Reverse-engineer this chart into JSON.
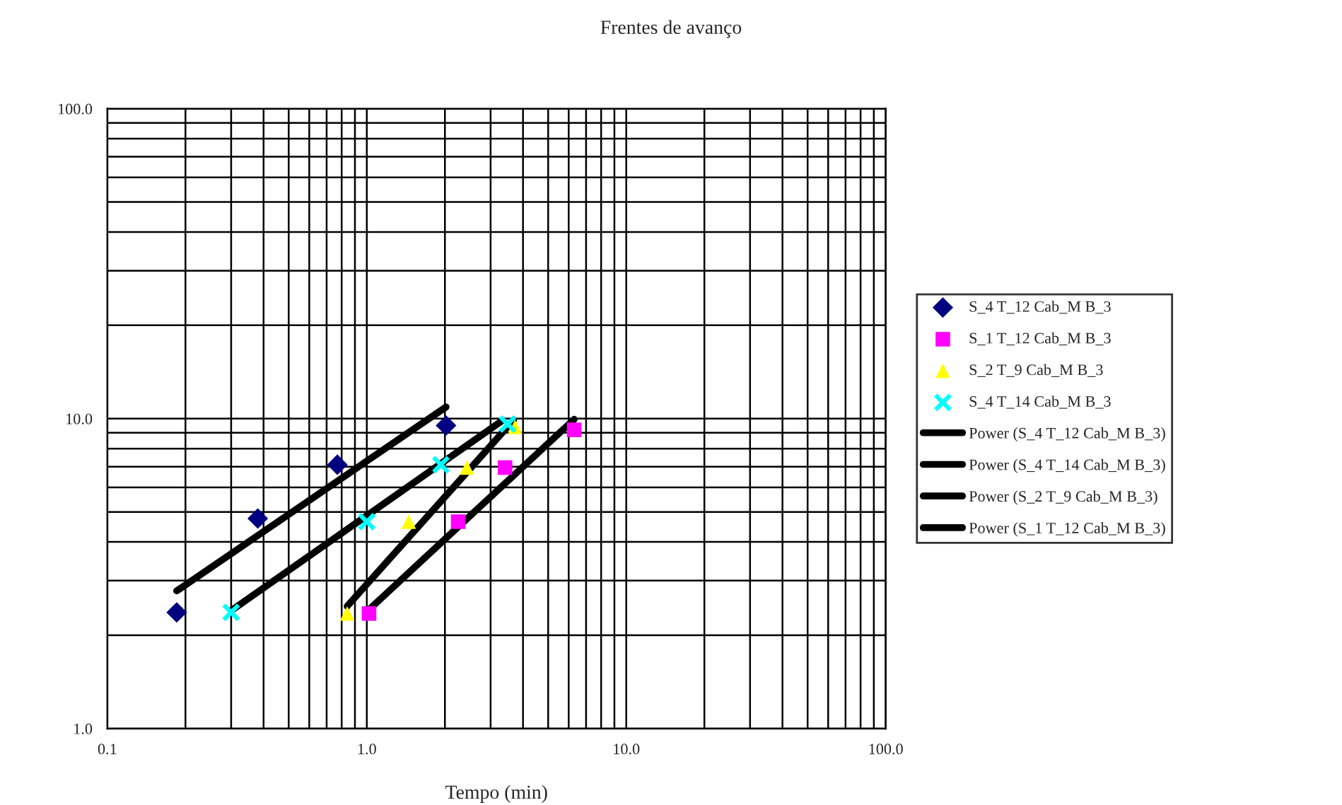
{
  "chart_data": {
    "type": "scatter",
    "title": "Frentes de avanço",
    "xlabel": "Tempo (min)",
    "log": "xy",
    "xlim": [
      0.1,
      100
    ],
    "ylim": [
      1,
      100
    ],
    "xticks": [
      {
        "value": 0.1,
        "label": "0.1"
      },
      {
        "value": 1,
        "label": "1.0"
      },
      {
        "value": 10,
        "label": "10.0"
      },
      {
        "value": 100,
        "label": "100.0"
      }
    ],
    "yticks": [
      {
        "value": 1,
        "label": "1.0"
      },
      {
        "value": 10,
        "label": "10.0"
      },
      {
        "value": 100,
        "label": "100.0"
      }
    ],
    "grid": true,
    "legend": "right",
    "series": [
      {
        "name": "S_4 T_12 Cab_M B_3",
        "marker": "diamond",
        "color": "#000080",
        "x": [
          0.185,
          0.38,
          0.77,
          2.02
        ],
        "values": [
          2.37,
          4.76,
          7.1,
          9.5
        ]
      },
      {
        "name": "S_1 T_12 Cab_M B_3",
        "marker": "square",
        "color": "#ff00ff",
        "x": [
          1.02,
          2.25,
          3.41,
          6.3
        ],
        "values": [
          2.35,
          4.65,
          6.95,
          9.2
        ]
      },
      {
        "name": "S_2 T_9 Cab_M B_3",
        "marker": "triangle",
        "color": "#ffff00",
        "x": [
          0.84,
          1.45,
          2.43,
          3.73
        ],
        "values": [
          2.35,
          4.65,
          6.95,
          9.4
        ]
      },
      {
        "name": "S_4 T_14 Cab_M B_3",
        "marker": "cross",
        "color": "#00ffff",
        "x": [
          0.3,
          1.0,
          1.93,
          3.49
        ],
        "values": [
          2.37,
          4.65,
          7.1,
          9.6
        ]
      },
      {
        "name": "Power (S_4 T_12 Cab_M B_3)",
        "type": "line",
        "line_style": "solid",
        "color": "#000000",
        "x": [
          0.185,
          2.02
        ],
        "values": [
          2.78,
          10.9
        ]
      },
      {
        "name": "Power (S_4 T_14 Cab_M B_3)",
        "type": "line",
        "line_style": "solid",
        "color": "#000000",
        "x": [
          0.3,
          3.3
        ],
        "values": [
          2.4,
          9.8
        ]
      },
      {
        "name": "Power (S_2 T_9 Cab_M B_3)",
        "type": "line",
        "line_style": "solid",
        "color": "#000000",
        "x": [
          0.84,
          3.68
        ],
        "values": [
          2.48,
          9.9
        ]
      },
      {
        "name": "Power (S_1 T_12 Cab_M B_3)",
        "type": "line",
        "line_style": "solid",
        "color": "#000000",
        "x": [
          1.02,
          6.3
        ],
        "values": [
          2.42,
          9.95
        ]
      }
    ]
  }
}
